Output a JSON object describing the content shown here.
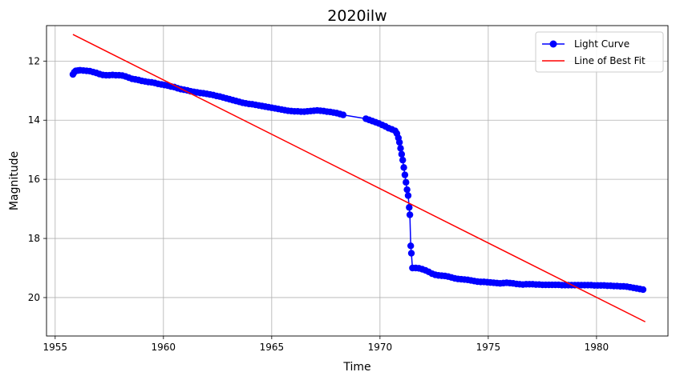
{
  "chart_data": {
    "type": "line",
    "title": "2020ilw",
    "xlabel": "Time",
    "ylabel": "Magnitude",
    "xlim": [
      1954.6,
      1983.3
    ],
    "ylim": [
      21.3,
      10.8
    ],
    "y_inverted": true,
    "grid": true,
    "legend_position": "top-right",
    "x_ticks": [
      1955,
      1960,
      1965,
      1970,
      1975,
      1980
    ],
    "y_ticks": [
      12,
      14,
      16,
      18,
      20
    ],
    "series": [
      {
        "name": "Light Curve",
        "color": "#0000ff",
        "marker": "circle",
        "points": [
          [
            1955.82,
            12.45
          ],
          [
            1955.88,
            12.38
          ],
          [
            1955.95,
            12.33
          ],
          [
            1956.05,
            12.32
          ],
          [
            1956.15,
            12.31
          ],
          [
            1956.3,
            12.32
          ],
          [
            1956.45,
            12.33
          ],
          [
            1956.6,
            12.34
          ],
          [
            1956.75,
            12.37
          ],
          [
            1956.9,
            12.4
          ],
          [
            1957.05,
            12.44
          ],
          [
            1957.2,
            12.47
          ],
          [
            1957.35,
            12.48
          ],
          [
            1957.5,
            12.48
          ],
          [
            1957.65,
            12.47
          ],
          [
            1957.8,
            12.48
          ],
          [
            1957.95,
            12.48
          ],
          [
            1958.1,
            12.49
          ],
          [
            1958.25,
            12.52
          ],
          [
            1958.4,
            12.56
          ],
          [
            1958.55,
            12.6
          ],
          [
            1958.7,
            12.62
          ],
          [
            1958.85,
            12.64
          ],
          [
            1959.0,
            12.67
          ],
          [
            1959.15,
            12.69
          ],
          [
            1959.3,
            12.71
          ],
          [
            1959.45,
            12.72
          ],
          [
            1959.6,
            12.74
          ],
          [
            1959.75,
            12.77
          ],
          [
            1959.9,
            12.79
          ],
          [
            1960.05,
            12.81
          ],
          [
            1960.2,
            12.83
          ],
          [
            1960.35,
            12.86
          ],
          [
            1960.5,
            12.88
          ],
          [
            1960.65,
            12.92
          ],
          [
            1960.8,
            12.95
          ],
          [
            1960.95,
            12.97
          ],
          [
            1961.1,
            12.99
          ],
          [
            1961.25,
            13.02
          ],
          [
            1961.4,
            13.04
          ],
          [
            1961.55,
            13.06
          ],
          [
            1961.7,
            13.08
          ],
          [
            1961.85,
            13.09
          ],
          [
            1962.0,
            13.11
          ],
          [
            1962.15,
            13.13
          ],
          [
            1962.3,
            13.15
          ],
          [
            1962.45,
            13.18
          ],
          [
            1962.6,
            13.2
          ],
          [
            1962.75,
            13.23
          ],
          [
            1962.9,
            13.26
          ],
          [
            1963.05,
            13.29
          ],
          [
            1963.2,
            13.32
          ],
          [
            1963.35,
            13.35
          ],
          [
            1963.5,
            13.38
          ],
          [
            1963.65,
            13.41
          ],
          [
            1963.8,
            13.43
          ],
          [
            1963.95,
            13.45
          ],
          [
            1964.1,
            13.46
          ],
          [
            1964.25,
            13.48
          ],
          [
            1964.4,
            13.5
          ],
          [
            1964.55,
            13.52
          ],
          [
            1964.7,
            13.54
          ],
          [
            1964.85,
            13.56
          ],
          [
            1965.0,
            13.58
          ],
          [
            1965.15,
            13.6
          ],
          [
            1965.3,
            13.62
          ],
          [
            1965.45,
            13.64
          ],
          [
            1965.6,
            13.66
          ],
          [
            1965.75,
            13.68
          ],
          [
            1965.9,
            13.69
          ],
          [
            1966.05,
            13.7
          ],
          [
            1966.2,
            13.7
          ],
          [
            1966.35,
            13.71
          ],
          [
            1966.5,
            13.71
          ],
          [
            1966.65,
            13.7
          ],
          [
            1966.8,
            13.69
          ],
          [
            1966.95,
            13.68
          ],
          [
            1967.1,
            13.67
          ],
          [
            1967.25,
            13.68
          ],
          [
            1967.4,
            13.69
          ],
          [
            1967.55,
            13.71
          ],
          [
            1967.7,
            13.72
          ],
          [
            1967.85,
            13.74
          ],
          [
            1968.0,
            13.76
          ],
          [
            1968.15,
            13.79
          ],
          [
            1968.3,
            13.82
          ],
          [
            1969.35,
            13.95
          ],
          [
            1969.5,
            13.99
          ],
          [
            1969.65,
            14.03
          ],
          [
            1969.8,
            14.07
          ],
          [
            1969.95,
            14.11
          ],
          [
            1970.1,
            14.16
          ],
          [
            1970.25,
            14.21
          ],
          [
            1970.4,
            14.27
          ],
          [
            1970.55,
            14.31
          ],
          [
            1970.7,
            14.36
          ],
          [
            1970.78,
            14.45
          ],
          [
            1970.85,
            14.6
          ],
          [
            1970.9,
            14.75
          ],
          [
            1970.95,
            14.95
          ],
          [
            1971.0,
            15.15
          ],
          [
            1971.05,
            15.35
          ],
          [
            1971.1,
            15.6
          ],
          [
            1971.15,
            15.85
          ],
          [
            1971.2,
            16.1
          ],
          [
            1971.25,
            16.35
          ],
          [
            1971.3,
            16.55
          ],
          [
            1971.35,
            16.95
          ],
          [
            1971.38,
            17.2
          ],
          [
            1971.42,
            18.25
          ],
          [
            1971.45,
            18.5
          ],
          [
            1971.5,
            19.0
          ],
          [
            1971.65,
            19.0
          ],
          [
            1971.8,
            19.01
          ],
          [
            1971.95,
            19.04
          ],
          [
            1972.1,
            19.08
          ],
          [
            1972.25,
            19.13
          ],
          [
            1972.4,
            19.19
          ],
          [
            1972.55,
            19.23
          ],
          [
            1972.7,
            19.25
          ],
          [
            1972.85,
            19.26
          ],
          [
            1973.0,
            19.27
          ],
          [
            1973.15,
            19.29
          ],
          [
            1973.3,
            19.32
          ],
          [
            1973.45,
            19.35
          ],
          [
            1973.6,
            19.37
          ],
          [
            1973.75,
            19.38
          ],
          [
            1973.9,
            19.39
          ],
          [
            1974.05,
            19.4
          ],
          [
            1974.2,
            19.42
          ],
          [
            1974.35,
            19.44
          ],
          [
            1974.5,
            19.46
          ],
          [
            1974.65,
            19.47
          ],
          [
            1974.8,
            19.47
          ],
          [
            1974.95,
            19.48
          ],
          [
            1975.1,
            19.49
          ],
          [
            1975.25,
            19.5
          ],
          [
            1975.4,
            19.51
          ],
          [
            1975.55,
            19.52
          ],
          [
            1975.7,
            19.51
          ],
          [
            1975.85,
            19.5
          ],
          [
            1976.0,
            19.51
          ],
          [
            1976.15,
            19.52
          ],
          [
            1976.3,
            19.54
          ],
          [
            1976.45,
            19.55
          ],
          [
            1976.6,
            19.56
          ],
          [
            1976.75,
            19.55
          ],
          [
            1976.9,
            19.55
          ],
          [
            1977.05,
            19.55
          ],
          [
            1977.2,
            19.56
          ],
          [
            1977.35,
            19.56
          ],
          [
            1977.5,
            19.57
          ],
          [
            1977.65,
            19.57
          ],
          [
            1977.8,
            19.57
          ],
          [
            1977.95,
            19.57
          ],
          [
            1978.1,
            19.57
          ],
          [
            1978.25,
            19.57
          ],
          [
            1978.4,
            19.58
          ],
          [
            1978.55,
            19.58
          ],
          [
            1978.7,
            19.58
          ],
          [
            1978.85,
            19.58
          ],
          [
            1979.0,
            19.58
          ],
          [
            1979.15,
            19.58
          ],
          [
            1979.3,
            19.58
          ],
          [
            1979.45,
            19.58
          ],
          [
            1979.6,
            19.58
          ],
          [
            1979.75,
            19.58
          ],
          [
            1979.9,
            19.59
          ],
          [
            1980.05,
            19.59
          ],
          [
            1980.2,
            19.59
          ],
          [
            1980.35,
            19.59
          ],
          [
            1980.5,
            19.6
          ],
          [
            1980.65,
            19.6
          ],
          [
            1980.8,
            19.61
          ],
          [
            1980.95,
            19.61
          ],
          [
            1981.1,
            19.62
          ],
          [
            1981.25,
            19.62
          ],
          [
            1981.4,
            19.63
          ],
          [
            1981.55,
            19.65
          ],
          [
            1981.7,
            19.67
          ],
          [
            1981.85,
            19.69
          ],
          [
            1982.0,
            19.71
          ],
          [
            1982.15,
            19.73
          ]
        ]
      },
      {
        "name": "Line of Best Fit",
        "color": "#ff0000",
        "marker": "none",
        "points": [
          [
            1955.82,
            11.1
          ],
          [
            1982.25,
            20.82
          ]
        ]
      }
    ]
  }
}
